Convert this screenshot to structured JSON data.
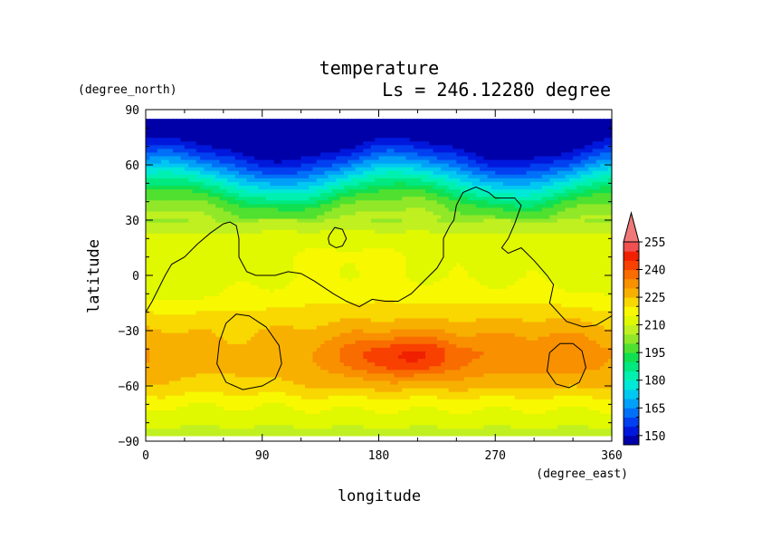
{
  "chart_data": {
    "type": "heatmap",
    "title": "temperature",
    "subtitle": "Ls = 246.12280 degree",
    "xlabel": "longitude",
    "ylabel": "latitude",
    "x_units": "(degree_east)",
    "y_units": "(degree_north)",
    "xlim": [
      0,
      360
    ],
    "ylim": [
      -90,
      90
    ],
    "x_ticks": [
      0,
      90,
      180,
      270,
      360
    ],
    "y_ticks": [
      90,
      60,
      30,
      0,
      -30,
      -60,
      -90
    ],
    "data_lat_range": [
      -87,
      85
    ],
    "colorbar": {
      "levels": [
        145,
        150,
        155,
        160,
        165,
        170,
        175,
        180,
        185,
        190,
        195,
        200,
        205,
        210,
        215,
        220,
        225,
        230,
        235,
        240,
        245,
        250,
        255,
        260
      ],
      "tick_labels": [
        150,
        165,
        180,
        195,
        210,
        225,
        240,
        255
      ],
      "colors": [
        "#0000a8",
        "#0018dc",
        "#0040f0",
        "#0070f8",
        "#00a0f8",
        "#00c8f0",
        "#00e8d8",
        "#00f0b0",
        "#00e880",
        "#10e050",
        "#50e030",
        "#90e828",
        "#c0f020",
        "#e0f800",
        "#f8f800",
        "#f8d800",
        "#f8b000",
        "#f89000",
        "#f86c00",
        "#f84000",
        "#f02000",
        "#f05050",
        "#f07878"
      ],
      "extend": "max"
    },
    "zonal_profile": [
      {
        "lat": -87,
        "value": 207
      },
      {
        "lat": -80,
        "value": 211
      },
      {
        "lat": -70,
        "value": 215
      },
      {
        "lat": -60,
        "value": 222
      },
      {
        "lat": -50,
        "value": 225
      },
      {
        "lat": -40,
        "value": 226
      },
      {
        "lat": -30,
        "value": 224
      },
      {
        "lat": -20,
        "value": 221
      },
      {
        "lat": -10,
        "value": 217
      },
      {
        "lat": 0,
        "value": 215
      },
      {
        "lat": 10,
        "value": 215
      },
      {
        "lat": 20,
        "value": 213
      },
      {
        "lat": 30,
        "value": 205
      },
      {
        "lat": 40,
        "value": 197
      },
      {
        "lat": 50,
        "value": 180
      },
      {
        "lat": 60,
        "value": 162
      },
      {
        "lat": 70,
        "value": 148
      },
      {
        "lat": 85,
        "value": 145
      }
    ],
    "anomalies": [
      {
        "lon": 200,
        "lat": -44,
        "amp": 14,
        "rlon": 32,
        "rlat": 8
      },
      {
        "lon": 210,
        "lat": -44,
        "amp": 6,
        "rlon": 110,
        "rlat": 16
      },
      {
        "lon": 330,
        "lat": -42,
        "amp": 4,
        "rlon": 45,
        "rlat": 14
      },
      {
        "lon": 70,
        "lat": -40,
        "amp": -2,
        "rlon": 40,
        "rlat": 16
      },
      {
        "lon": 60,
        "lat": 5,
        "amp": -3,
        "rlon": 55,
        "rlat": 15
      },
      {
        "lon": 10,
        "lat": -8,
        "amp": -3,
        "rlon": 25,
        "rlat": 12
      },
      {
        "lon": 140,
        "lat": 10,
        "amp": 2,
        "rlon": 80,
        "rlat": 15
      },
      {
        "lon": 250,
        "lat": 10,
        "amp": -2,
        "rlon": 50,
        "rlat": 15
      }
    ],
    "northern_wave": {
      "amp_deg": 6,
      "wavenumber": 2,
      "phase_deg": 60
    },
    "contours": [
      {
        "name": "topography",
        "closed": false,
        "points": [
          [
            0,
            -20
          ],
          [
            5,
            -14
          ],
          [
            15,
            0
          ],
          [
            20,
            6
          ],
          [
            30,
            10
          ],
          [
            40,
            17
          ],
          [
            50,
            23
          ],
          [
            60,
            28
          ],
          [
            65,
            29
          ],
          [
            70,
            27
          ],
          [
            72,
            20
          ],
          [
            72,
            10
          ],
          [
            78,
            2
          ],
          [
            85,
            0
          ],
          [
            100,
            0
          ],
          [
            110,
            2
          ],
          [
            120,
            1
          ],
          [
            130,
            -3
          ],
          [
            145,
            -10
          ],
          [
            155,
            -14
          ],
          [
            165,
            -17
          ],
          [
            175,
            -13
          ],
          [
            185,
            -14
          ],
          [
            195,
            -14
          ],
          [
            205,
            -10
          ],
          [
            215,
            -3
          ],
          [
            225,
            4
          ],
          [
            230,
            10
          ],
          [
            230,
            20
          ],
          [
            235,
            27
          ],
          [
            238,
            30
          ],
          [
            240,
            38
          ],
          [
            245,
            45
          ],
          [
            255,
            48
          ],
          [
            265,
            45
          ],
          [
            270,
            42
          ],
          [
            285,
            42
          ],
          [
            290,
            38
          ],
          [
            285,
            28
          ],
          [
            280,
            20
          ],
          [
            275,
            15
          ],
          [
            280,
            12
          ],
          [
            290,
            15
          ],
          [
            300,
            8
          ],
          [
            310,
            0
          ],
          [
            315,
            -5
          ],
          [
            312,
            -15
          ],
          [
            325,
            -25
          ],
          [
            338,
            -28
          ],
          [
            348,
            -27
          ],
          [
            360,
            -22
          ]
        ]
      },
      {
        "name": "island",
        "closed": true,
        "points": [
          [
            142,
            22
          ],
          [
            146,
            26
          ],
          [
            152,
            25
          ],
          [
            155,
            20
          ],
          [
            152,
            16
          ],
          [
            147,
            15
          ],
          [
            142,
            17
          ],
          [
            141,
            20
          ]
        ]
      },
      {
        "name": "crater-west",
        "closed": true,
        "points": [
          [
            70,
            -21
          ],
          [
            80,
            -22
          ],
          [
            93,
            -28
          ],
          [
            103,
            -38
          ],
          [
            105,
            -48
          ],
          [
            100,
            -56
          ],
          [
            90,
            -60
          ],
          [
            75,
            -62
          ],
          [
            62,
            -58
          ],
          [
            55,
            -48
          ],
          [
            57,
            -36
          ],
          [
            62,
            -26
          ]
        ]
      },
      {
        "name": "crater-east",
        "closed": true,
        "points": [
          [
            330,
            -37
          ],
          [
            337,
            -41
          ],
          [
            340,
            -50
          ],
          [
            335,
            -58
          ],
          [
            327,
            -61
          ],
          [
            317,
            -59
          ],
          [
            310,
            -52
          ],
          [
            312,
            -42
          ],
          [
            320,
            -37
          ]
        ]
      }
    ]
  }
}
